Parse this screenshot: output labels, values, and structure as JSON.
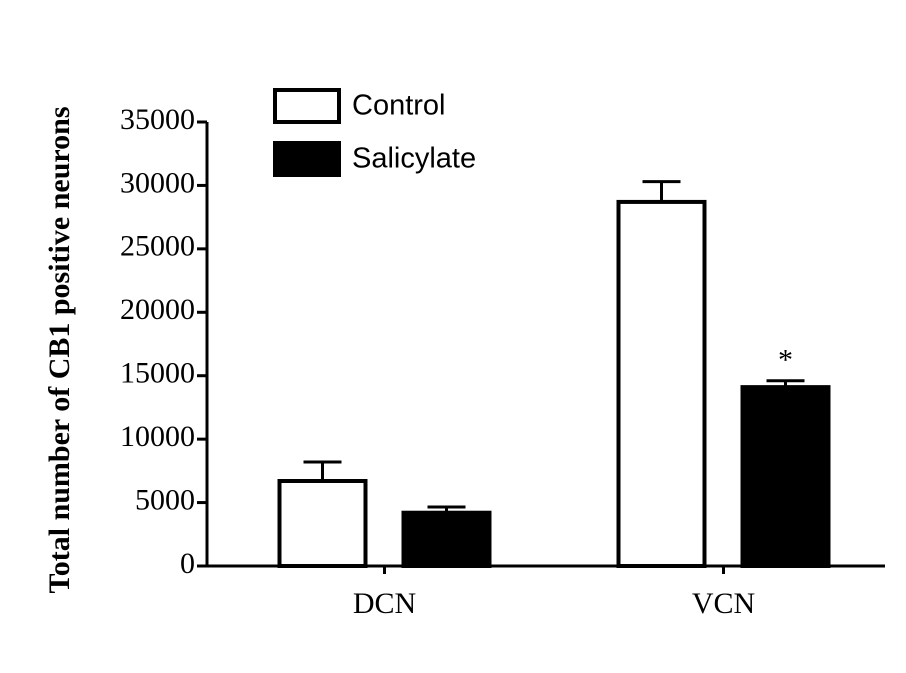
{
  "chart_data": {
    "type": "bar",
    "ylabel": "Total number of CB1 positive neurons",
    "categories": [
      "DCN",
      "VCN"
    ],
    "series": [
      {
        "name": "Control",
        "color": "#ffffff",
        "values": [
          6700,
          28700
        ],
        "errors": [
          1500,
          1600
        ]
      },
      {
        "name": "Salicylate",
        "color": "#000000",
        "values": [
          4200,
          14100
        ],
        "errors": [
          450,
          500
        ]
      }
    ],
    "ylim": [
      0,
      35000
    ],
    "yticks": [
      0,
      5000,
      10000,
      15000,
      20000,
      25000,
      30000,
      35000
    ],
    "annotations": [
      {
        "text": "*"
      }
    ],
    "legend": "upper left"
  }
}
